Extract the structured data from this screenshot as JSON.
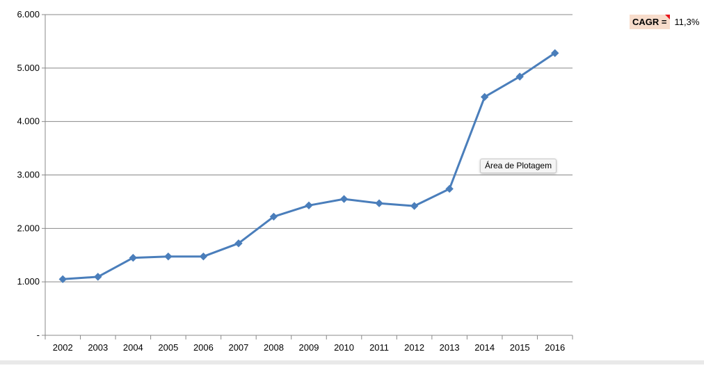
{
  "chart_data": {
    "type": "line",
    "categories": [
      "2002",
      "2003",
      "2004",
      "2005",
      "2006",
      "2007",
      "2008",
      "2009",
      "2010",
      "2011",
      "2012",
      "2013",
      "2014",
      "2015",
      "2016"
    ],
    "series": [
      {
        "values": [
          1050,
          1095,
          1450,
          1475,
          1475,
          1720,
          2220,
          2430,
          2550,
          2470,
          2420,
          2740,
          4460,
          4840,
          5280
        ]
      }
    ],
    "yticks": [
      "-",
      "1.000",
      "2.000",
      "3.000",
      "4.000",
      "5.000",
      "6.000"
    ],
    "ylim": [
      0,
      6000
    ],
    "grid": true,
    "legend": "none",
    "line_color": "#4a7ebb",
    "grid_color": "#888888"
  },
  "cagr": {
    "label": "CAGR =",
    "value": "11,3%",
    "label_bg": "#f7dccb",
    "corner_color": "#e8141b"
  },
  "tooltip": {
    "text": "Área de Plotagem"
  }
}
